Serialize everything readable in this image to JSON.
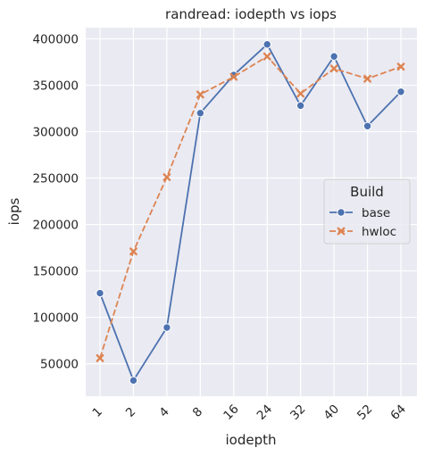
{
  "chart_data": {
    "type": "line",
    "title": "randread: iodepth vs iops",
    "xlabel": "iodepth",
    "ylabel": "iops",
    "categories": [
      "1",
      "2",
      "4",
      "8",
      "16",
      "24",
      "32",
      "40",
      "52",
      "64"
    ],
    "ylim": [
      15000,
      412000
    ],
    "yticks": [
      50000,
      100000,
      150000,
      200000,
      250000,
      300000,
      350000,
      400000
    ],
    "grid": true,
    "legend": {
      "title": "Build",
      "placement": "center-right"
    },
    "series": [
      {
        "name": "base",
        "color": "#4c72b0",
        "marker": "circle",
        "linestyle": "solid",
        "values": [
          126000,
          32000,
          89000,
          320000,
          361000,
          394000,
          328000,
          381000,
          306000,
          343000
        ]
      },
      {
        "name": "hwloc",
        "color": "#dd8452",
        "marker": "x",
        "linestyle": "dashed",
        "values": [
          56000,
          171000,
          251000,
          340000,
          359000,
          381000,
          341000,
          368000,
          357000,
          370000
        ]
      }
    ]
  }
}
